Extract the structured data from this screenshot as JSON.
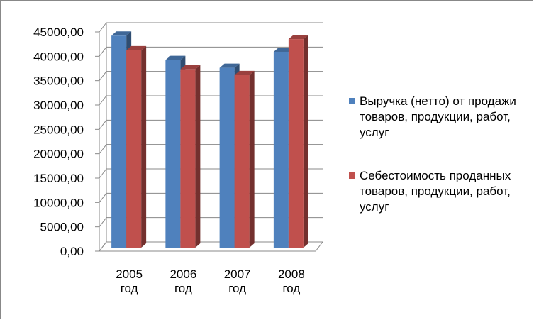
{
  "chart_data": {
    "type": "bar3d",
    "categories": [
      "2005 год",
      "2006 год",
      "2007 год",
      "2008 год"
    ],
    "series": [
      {
        "name": "Выручка (нетто) от продажи товаров, продукции, работ, услуг",
        "color": "#4f81bd",
        "values": [
          43500,
          38500,
          36900,
          40200
        ]
      },
      {
        "name": "Себестоимость проданных товаров, продукции, работ, услуг",
        "color": "#c0504d",
        "values": [
          40500,
          36600,
          35400,
          42800
        ]
      }
    ],
    "ylim": [
      0,
      45000
    ],
    "yticks": [
      {
        "value": 0,
        "label": "0,00"
      },
      {
        "value": 5000,
        "label": "5000,00"
      },
      {
        "value": 10000,
        "label": "10000,00"
      },
      {
        "value": 15000,
        "label": "15000,00"
      },
      {
        "value": 20000,
        "label": "20000,00"
      },
      {
        "value": 25000,
        "label": "25000,00"
      },
      {
        "value": 30000,
        "label": "30000,00"
      },
      {
        "value": 35000,
        "label": "35000,00"
      },
      {
        "value": 40000,
        "label": "40000,00"
      },
      {
        "value": 45000,
        "label": "45000,00"
      }
    ],
    "grid": true,
    "legend": "right"
  }
}
